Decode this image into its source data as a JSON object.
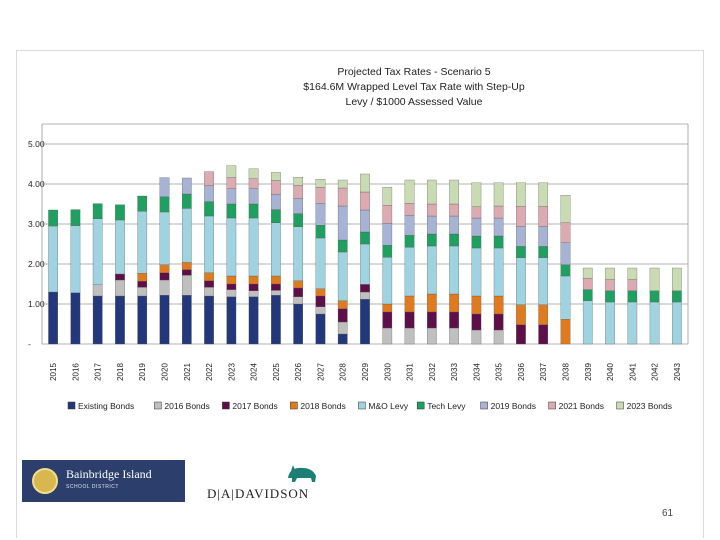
{
  "slide": {
    "page_number": "61",
    "logo_primary": "Bainbridge Island",
    "logo_secondary": "SCHOOL DISTRICT",
    "davidson_text": "D|A|DAVIDSON"
  },
  "chart_data": {
    "type": "bar",
    "stacked": true,
    "title_lines": [
      "Projected Tax Rates - Scenario 5",
      "$164.6M Wrapped Level Tax Rate with Step-Up",
      "Levy / $1000 Assessed Value"
    ],
    "xlabel": "",
    "ylabel": "",
    "ylim": [
      0,
      5
    ],
    "yticks": [
      0,
      1,
      2,
      3,
      4,
      5
    ],
    "ytick_labels": [
      "-",
      "1.00",
      "2.00",
      "3.00",
      "4.00",
      "5.00"
    ],
    "grid": true,
    "legend_position": "bottom",
    "categories": [
      "2015",
      "2016",
      "2017",
      "2018",
      "2019",
      "2020",
      "2021",
      "2022",
      "2023",
      "2024",
      "2025",
      "2026",
      "2027",
      "2028",
      "2029",
      "2030",
      "2031",
      "2032",
      "2033",
      "2034",
      "2035",
      "2036",
      "2037",
      "2038",
      "2039",
      "2040",
      "2041",
      "2042",
      "2043"
    ],
    "series": [
      {
        "name": "Existing Bonds",
        "color": "#23387a",
        "values": [
          1.3,
          1.28,
          1.2,
          1.2,
          1.2,
          1.22,
          1.22,
          1.2,
          1.18,
          1.18,
          1.22,
          1.0,
          0.75,
          0.25,
          1.12,
          0,
          0,
          0,
          0,
          0,
          0,
          0,
          0,
          0,
          0,
          0,
          0,
          0,
          0
        ]
      },
      {
        "name": "2016 Bonds",
        "color": "#bfbfbf",
        "values": [
          0,
          0,
          0.28,
          0.4,
          0.22,
          0.38,
          0.5,
          0.22,
          0.18,
          0.15,
          0.12,
          0.18,
          0.18,
          0.3,
          0.18,
          0.4,
          0.4,
          0.4,
          0.4,
          0.35,
          0.35,
          0,
          0,
          0,
          0,
          0,
          0,
          0,
          0
        ]
      },
      {
        "name": "2017 Bonds",
        "color": "#5e0f4a",
        "values": [
          0,
          0,
          0,
          0.15,
          0.15,
          0.18,
          0.14,
          0.16,
          0.14,
          0.17,
          0.16,
          0.22,
          0.27,
          0.33,
          0.19,
          0.4,
          0.4,
          0.4,
          0.4,
          0.4,
          0.4,
          0.48,
          0.48,
          0,
          0,
          0,
          0,
          0,
          0
        ]
      },
      {
        "name": "2018 Bonds",
        "color": "#e07a1f",
        "values": [
          0,
          0,
          0,
          0,
          0.2,
          0.2,
          0.18,
          0.2,
          0.2,
          0.2,
          0.2,
          0.18,
          0.18,
          0.2,
          0,
          0.2,
          0.4,
          0.45,
          0.45,
          0.45,
          0.45,
          0.5,
          0.5,
          0.62,
          0,
          0,
          0,
          0,
          0
        ]
      },
      {
        "name": "M&O Levy",
        "color": "#9fd3e0",
        "values": [
          1.65,
          1.68,
          1.65,
          1.35,
          1.55,
          1.32,
          1.35,
          1.42,
          1.45,
          1.45,
          1.33,
          1.35,
          1.27,
          1.22,
          1.01,
          1.17,
          1.22,
          1.2,
          1.2,
          1.2,
          1.2,
          1.18,
          1.18,
          1.08,
          1.08,
          1.05,
          1.05,
          1.05,
          1.05
        ]
      },
      {
        "name": "Tech Levy",
        "color": "#1fa060",
        "values": [
          0.4,
          0.4,
          0.38,
          0.38,
          0.38,
          0.38,
          0.36,
          0.36,
          0.35,
          0.35,
          0.33,
          0.33,
          0.32,
          0.3,
          0.3,
          0.3,
          0.3,
          0.3,
          0.3,
          0.3,
          0.3,
          0.28,
          0.28,
          0.28,
          0.28,
          0.28,
          0.28,
          0.28,
          0.28
        ]
      },
      {
        "name": "2019 Bonds",
        "color": "#a6b3d4",
        "values": [
          0,
          0,
          0,
          0,
          0,
          0.48,
          0.4,
          0.4,
          0.38,
          0.38,
          0.38,
          0.38,
          0.55,
          0.85,
          0.55,
          0.55,
          0.5,
          0.45,
          0.45,
          0.45,
          0.45,
          0.5,
          0.5,
          0.55,
          0,
          0,
          0,
          0,
          0
        ]
      },
      {
        "name": "2021 Bonds",
        "color": "#dcaab1",
        "values": [
          0,
          0,
          0,
          0,
          0,
          0,
          0,
          0.35,
          0.28,
          0.25,
          0.35,
          0.33,
          0.4,
          0.45,
          0.45,
          0.45,
          0.3,
          0.3,
          0.3,
          0.28,
          0.3,
          0.5,
          0.5,
          0.5,
          0.28,
          0.28,
          0.28,
          0,
          0
        ]
      },
      {
        "name": "2023 Bonds",
        "color": "#c9dbb3",
        "values": [
          0,
          0,
          0,
          0,
          0,
          0,
          0,
          0,
          0.3,
          0.25,
          0.2,
          0.2,
          0.2,
          0.2,
          0.45,
          0.45,
          0.58,
          0.6,
          0.6,
          0.6,
          0.58,
          0.59,
          0.59,
          0.69,
          0.26,
          0.29,
          0.29,
          0.57,
          0.57
        ]
      }
    ]
  }
}
